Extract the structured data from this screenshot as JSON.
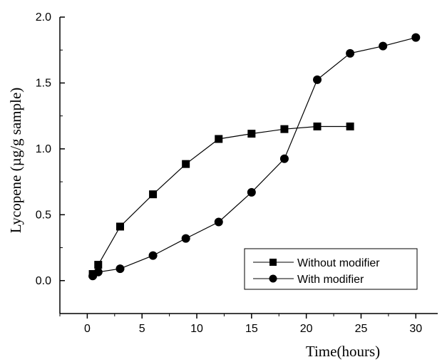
{
  "chart_data": {
    "type": "line",
    "xlabel": "Time(hours)",
    "ylabel": "Lycopene (µg/g sample)",
    "xlim": [
      -2.5,
      32
    ],
    "ylim": [
      -0.25,
      2.0
    ],
    "xticks": [
      0,
      5,
      10,
      15,
      20,
      25,
      30
    ],
    "yticks": [
      0.0,
      0.5,
      1.0,
      1.5,
      2.0
    ],
    "xtick_labels": [
      "0",
      "5",
      "10",
      "15",
      "20",
      "25",
      "30"
    ],
    "ytick_labels": [
      "0.0",
      "0.5",
      "1.0",
      "1.5",
      "2.0"
    ],
    "grid": false,
    "legend_position": "bottom-right",
    "series": [
      {
        "name": "Without modifier",
        "marker": "square",
        "color": "#000000",
        "x": [
          0.5,
          1,
          3,
          6,
          9,
          12,
          15,
          18,
          21,
          24
        ],
        "y": [
          0.05,
          0.12,
          0.41,
          0.655,
          0.885,
          1.075,
          1.115,
          1.15,
          1.17,
          1.17
        ]
      },
      {
        "name": "With modifier",
        "marker": "circle",
        "color": "#000000",
        "x": [
          0.5,
          1,
          3,
          6,
          9,
          12,
          15,
          18,
          21,
          24,
          27,
          30
        ],
        "y": [
          0.035,
          0.065,
          0.09,
          0.19,
          0.32,
          0.445,
          0.67,
          0.925,
          1.525,
          1.725,
          1.78,
          1.845
        ]
      }
    ]
  }
}
